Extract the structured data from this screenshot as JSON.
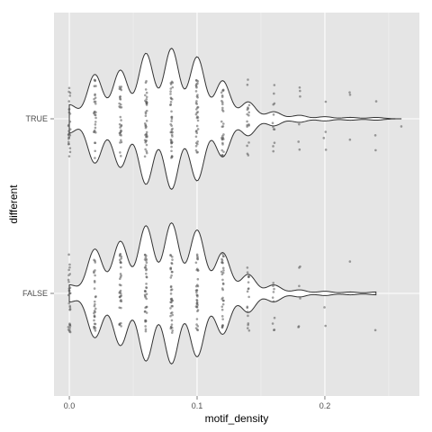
{
  "chart_data": {
    "type": "violin",
    "orientation": "horizontal",
    "xlabel": "motif_density",
    "ylabel": "different",
    "xlim": [
      -0.012,
      0.274
    ],
    "x_ticks": [
      {
        "value": 0.0,
        "label": "0.0"
      },
      {
        "value": 0.1,
        "label": "0.1"
      },
      {
        "value": 0.2,
        "label": "0.2"
      }
    ],
    "categories": [
      "TRUE",
      "FALSE"
    ],
    "grid": true,
    "panel_background": "#e5e5e5",
    "grid_color": "#ffffff",
    "violin_fill": "#ffffff",
    "violin_stroke": "#333333",
    "point_color": "#555555",
    "series": [
      {
        "category": "TRUE",
        "x_range": [
          0.0,
          0.26
        ],
        "density_peaks": [
          {
            "x": 0.0,
            "w": 0.2
          },
          {
            "x": 0.02,
            "w": 0.63
          },
          {
            "x": 0.04,
            "w": 0.69
          },
          {
            "x": 0.06,
            "w": 0.93
          },
          {
            "x": 0.08,
            "w": 1.0
          },
          {
            "x": 0.1,
            "w": 0.88
          },
          {
            "x": 0.12,
            "w": 0.54
          },
          {
            "x": 0.14,
            "w": 0.24
          },
          {
            "x": 0.16,
            "w": 0.1
          },
          {
            "x": 0.18,
            "w": 0.05
          },
          {
            "x": 0.2,
            "w": 0.03
          },
          {
            "x": 0.22,
            "w": 0.02
          },
          {
            "x": 0.24,
            "w": 0.02
          }
        ],
        "points": [
          {
            "x": 0.0,
            "n": 28
          },
          {
            "x": 0.02,
            "n": 30
          },
          {
            "x": 0.04,
            "n": 32
          },
          {
            "x": 0.06,
            "n": 40
          },
          {
            "x": 0.08,
            "n": 40
          },
          {
            "x": 0.1,
            "n": 38
          },
          {
            "x": 0.12,
            "n": 30
          },
          {
            "x": 0.14,
            "n": 18
          },
          {
            "x": 0.16,
            "n": 12
          },
          {
            "x": 0.18,
            "n": 6
          },
          {
            "x": 0.2,
            "n": 4
          },
          {
            "x": 0.22,
            "n": 3
          },
          {
            "x": 0.24,
            "n": 3
          },
          {
            "x": 0.26,
            "n": 1
          }
        ]
      },
      {
        "category": "FALSE",
        "x_range": [
          0.0,
          0.24
        ],
        "density_peaks": [
          {
            "x": 0.0,
            "w": 0.12
          },
          {
            "x": 0.02,
            "w": 0.63
          },
          {
            "x": 0.04,
            "w": 0.74
          },
          {
            "x": 0.06,
            "w": 0.96
          },
          {
            "x": 0.08,
            "w": 1.0
          },
          {
            "x": 0.1,
            "w": 0.9
          },
          {
            "x": 0.12,
            "w": 0.58
          },
          {
            "x": 0.14,
            "w": 0.27
          },
          {
            "x": 0.16,
            "w": 0.12
          },
          {
            "x": 0.18,
            "w": 0.05
          },
          {
            "x": 0.2,
            "w": 0.03
          },
          {
            "x": 0.22,
            "w": 0.02
          },
          {
            "x": 0.24,
            "w": 0.02
          }
        ],
        "points": [
          {
            "x": 0.0,
            "n": 30
          },
          {
            "x": 0.02,
            "n": 30
          },
          {
            "x": 0.04,
            "n": 34
          },
          {
            "x": 0.06,
            "n": 40
          },
          {
            "x": 0.08,
            "n": 40
          },
          {
            "x": 0.1,
            "n": 38
          },
          {
            "x": 0.12,
            "n": 32
          },
          {
            "x": 0.14,
            "n": 18
          },
          {
            "x": 0.16,
            "n": 10
          },
          {
            "x": 0.18,
            "n": 6
          },
          {
            "x": 0.2,
            "n": 2
          },
          {
            "x": 0.22,
            "n": 1
          },
          {
            "x": 0.24,
            "n": 1
          }
        ]
      }
    ]
  }
}
